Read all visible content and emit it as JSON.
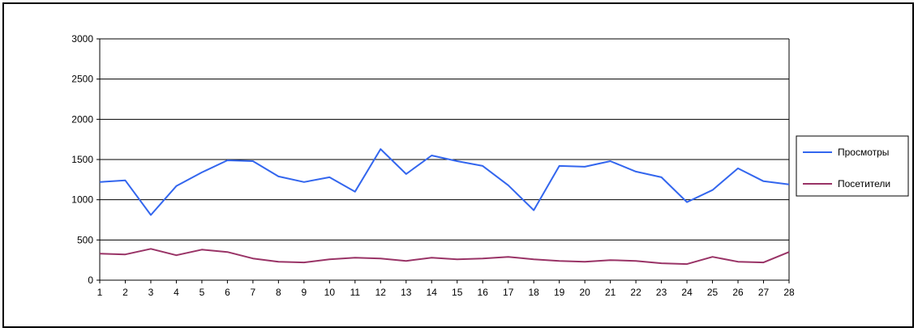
{
  "chart_data": {
    "type": "line",
    "title": "",
    "xlabel": "",
    "ylabel": "",
    "x": [
      1,
      2,
      3,
      4,
      5,
      6,
      7,
      8,
      9,
      10,
      11,
      12,
      13,
      14,
      15,
      16,
      17,
      18,
      19,
      20,
      21,
      22,
      23,
      24,
      25,
      26,
      27,
      28
    ],
    "ylim": [
      0,
      3000
    ],
    "yticks": [
      0,
      500,
      1000,
      1500,
      2000,
      2500,
      3000
    ],
    "grid": true,
    "legend_position": "right",
    "series": [
      {
        "name": "Просмотры",
        "color": "#3366ee",
        "values": [
          1220,
          1240,
          810,
          1170,
          1340,
          1490,
          1480,
          1290,
          1220,
          1280,
          1100,
          1630,
          1320,
          1550,
          1480,
          1420,
          1180,
          870,
          1420,
          1410,
          1480,
          1350,
          1280,
          970,
          1120,
          1390,
          1230,
          1190
        ]
      },
      {
        "name": "Посетители",
        "color": "#993366",
        "values": [
          330,
          320,
          390,
          310,
          380,
          350,
          270,
          230,
          220,
          260,
          280,
          270,
          240,
          280,
          260,
          270,
          290,
          260,
          240,
          230,
          250,
          240,
          210,
          200,
          290,
          230,
          220,
          350
        ]
      }
    ]
  }
}
